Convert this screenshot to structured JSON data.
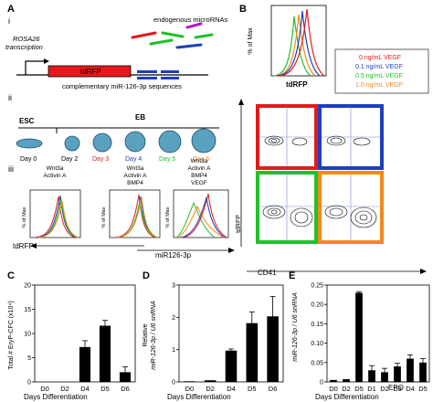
{
  "panels": {
    "A": {
      "letter": "A",
      "i": {
        "label": "i",
        "rosa": "ROSA26",
        "transcription": "transcription",
        "tdrfp": "tdRFP",
        "endogenous": "endogenous microRNAs",
        "complementary": "complementary miR-126-3p sequences"
      },
      "ii": {
        "label": "ii",
        "esc": "ESC",
        "eb": "EB",
        "days": [
          {
            "label": "Day 0",
            "color": "#000000"
          },
          {
            "label": "Day 2",
            "color": "#000000"
          },
          {
            "label": "Day 3",
            "color": "#e31a1c"
          },
          {
            "label": "Day 4",
            "color": "#1f3fbf"
          },
          {
            "label": "Day 5",
            "color": "#22c02a"
          },
          {
            "label": "Day 6",
            "color": "#f28a1c"
          }
        ]
      },
      "iii": {
        "label": "iii",
        "cond1": [
          "Wnt3a",
          "Activin A"
        ],
        "cond2": [
          "Wnt3a",
          "Activin A",
          "BMP4"
        ],
        "cond3": [
          "Wnt3a",
          "Activin A",
          "BMP4",
          "VEGF"
        ],
        "ylabel": "% of Max",
        "xleft": "tdRFP",
        "xright": "miR126-3p"
      }
    },
    "B": {
      "letter": "B",
      "ylabel": "% of Max",
      "xlabel": "tdRFP",
      "legend": [
        {
          "label": "0 ng/mL VEGF",
          "color": "#e31a1c"
        },
        {
          "label": "0.1 ng/mL VEGF",
          "color": "#1f3fbf"
        },
        {
          "label": "0.5 ng/mL VEGF",
          "color": "#22c02a"
        },
        {
          "label": "1.0 ng/mL VEGF",
          "color": "#f28a1c"
        }
      ],
      "contour_y": "tdRFP",
      "contour_x": "CD41"
    },
    "C": {
      "letter": "C",
      "ylabel": "Total # EryP-CFC (x10⁴)",
      "xlabel": "Days Differentiation",
      "chart_data": {
        "type": "bar",
        "categories": [
          "D0",
          "D2",
          "D4",
          "D5",
          "D6"
        ],
        "values": [
          0,
          0,
          7.2,
          11.6,
          2.0
        ],
        "errors": [
          0,
          0,
          1.3,
          1.1,
          1.1
        ],
        "ylim": [
          0,
          20
        ],
        "yticks": [
          "0",
          "5",
          "10",
          "15",
          "20"
        ]
      }
    },
    "D": {
      "letter": "D",
      "ylabel1": "Relative",
      "ylabel2": "miR-126-3p / U6 snRNA",
      "xlabel": "Days Differentiation",
      "chart_data": {
        "type": "bar",
        "categories": [
          "D0",
          "D2",
          "D4",
          "D5",
          "D6"
        ],
        "values": [
          0.02,
          0.05,
          0.97,
          1.82,
          2.03
        ],
        "errors": [
          0,
          0,
          0.05,
          0.35,
          0.62
        ],
        "ylim": [
          0,
          3
        ],
        "yticks": [
          "0",
          "1",
          "2",
          "3"
        ]
      }
    },
    "E": {
      "letter": "E",
      "ylabel": "miR-126-3p / U6 snRNA",
      "xlabel": "Days Differentiation",
      "epo": "EPO",
      "chart_data": {
        "type": "bar",
        "categories": [
          "D0",
          "D2",
          "D5",
          "D1",
          "D2",
          "D3",
          "D4",
          "D5"
        ],
        "values": [
          0.005,
          0.007,
          0.23,
          0.03,
          0.025,
          0.04,
          0.06,
          0.05
        ],
        "errors": [
          0,
          0,
          0.003,
          0.012,
          0.01,
          0.008,
          0.01,
          0.01
        ],
        "ylim": [
          0,
          0.25
        ],
        "yticks": [
          "0",
          "0.05",
          "0.10",
          "0.15",
          "0.20",
          "0.25"
        ]
      }
    }
  }
}
